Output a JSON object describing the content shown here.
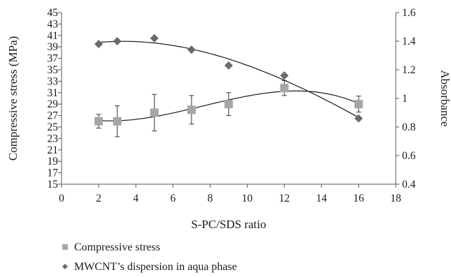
{
  "chart_data": {
    "type": "scatter",
    "xlabel": "S-PC/SDS ratio",
    "ylabel_left": "Compressive stress (MPa)",
    "ylabel_right": "Absorbance",
    "xlim": [
      0,
      18
    ],
    "x_ticks": [
      "0",
      "2",
      "4",
      "6",
      "8",
      "10",
      "12",
      "14",
      "16",
      "18"
    ],
    "ylim_left": [
      15,
      45
    ],
    "y_left_ticks": [
      "15",
      "17",
      "19",
      "21",
      "23",
      "25",
      "27",
      "29",
      "31",
      "33",
      "35",
      "37",
      "39",
      "41",
      "43",
      "45"
    ],
    "ylim_right": [
      0.4,
      1.6
    ],
    "y_right_ticks": [
      "0.4",
      "0.6",
      "0.8",
      "1",
      "1.2",
      "1.4",
      "1.6"
    ],
    "grid": false,
    "legend_position": "bottom-left",
    "series": [
      {
        "name": "Compressive stress",
        "axis": "left",
        "marker": "square",
        "color": "#a6a6a6",
        "x": [
          2,
          3,
          5,
          7,
          9,
          12,
          16
        ],
        "y": [
          26.0,
          26.0,
          27.5,
          28.0,
          29.0,
          31.8,
          29.0
        ],
        "error": [
          1.2,
          2.7,
          3.2,
          2.5,
          2.0,
          1.3,
          1.4
        ],
        "trendline": "polynomial"
      },
      {
        "name": "MWCNT’s dispersion in aqua phase",
        "axis": "right",
        "marker": "diamond",
        "color": "#6b6b6b",
        "x": [
          2,
          3,
          5,
          7,
          9,
          12,
          16
        ],
        "y": [
          1.38,
          1.4,
          1.42,
          1.34,
          1.23,
          1.16,
          0.86
        ],
        "trendline": "polynomial"
      }
    ]
  }
}
